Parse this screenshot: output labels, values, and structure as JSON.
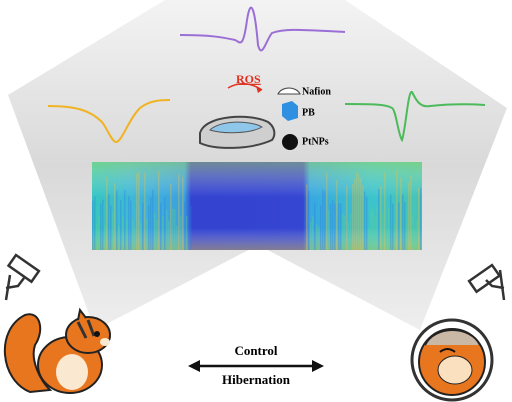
{
  "legend": {
    "reaction": "ROS",
    "items": [
      {
        "label": "Nafion"
      },
      {
        "label": "PB"
      },
      {
        "label": "PtNPs"
      }
    ]
  },
  "arrow": {
    "top": "Control",
    "bottom": "Hibernation"
  }
}
